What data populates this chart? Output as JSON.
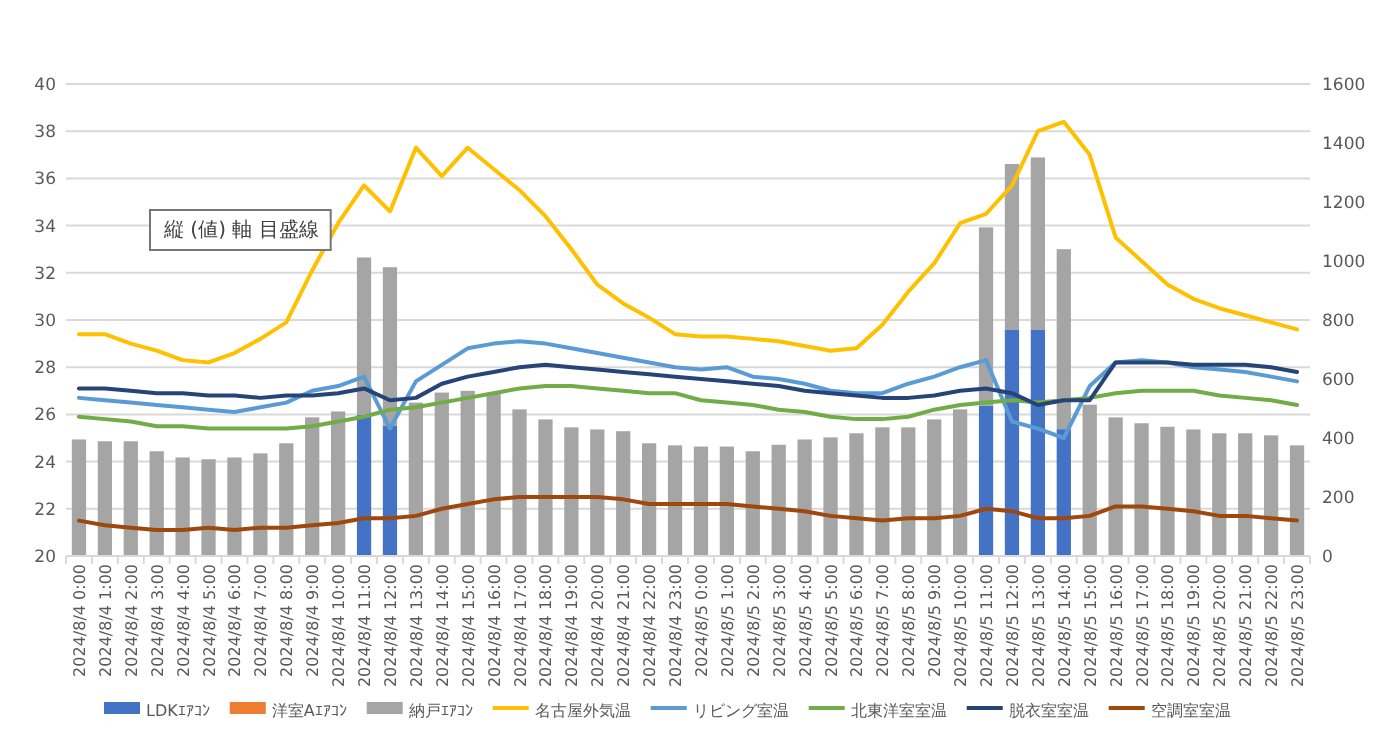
{
  "chart_data": {
    "type": "bar",
    "stacked": true,
    "grid": "y",
    "legend": "bottom",
    "annotations": [
      "縦 (値) 軸 目盛線"
    ],
    "categories": [
      "2024/8/4 0:00",
      "2024/8/4 1:00",
      "2024/8/4 2:00",
      "2024/8/4 3:00",
      "2024/8/4 4:00",
      "2024/8/4 5:00",
      "2024/8/4 6:00",
      "2024/8/4 7:00",
      "2024/8/4 8:00",
      "2024/8/4 9:00",
      "2024/8/4 10:00",
      "2024/8/4 11:00",
      "2024/8/4 12:00",
      "2024/8/4 13:00",
      "2024/8/4 14:00",
      "2024/8/4 15:00",
      "2024/8/4 16:00",
      "2024/8/4 17:00",
      "2024/8/4 18:00",
      "2024/8/4 19:00",
      "2024/8/4 20:00",
      "2024/8/4 21:00",
      "2024/8/4 22:00",
      "2024/8/4 23:00",
      "2024/8/5 0:00",
      "2024/8/5 1:00",
      "2024/8/5 2:00",
      "2024/8/5 3:00",
      "2024/8/5 4:00",
      "2024/8/5 5:00",
      "2024/8/5 6:00",
      "2024/8/5 7:00",
      "2024/8/5 8:00",
      "2024/8/5 9:00",
      "2024/8/5 10:00",
      "2024/8/5 11:00",
      "2024/8/5 12:00",
      "2024/8/5 13:00",
      "2024/8/5 14:00",
      "2024/8/5 15:00",
      "2024/8/5 16:00",
      "2024/8/5 17:00",
      "2024/8/5 18:00",
      "2024/8/5 19:00",
      "2024/8/5 20:00",
      "2024/8/5 21:00",
      "2024/8/5 22:00",
      "2024/8/5 23:00"
    ],
    "ylim": [
      20,
      40
    ],
    "yticks": [
      20,
      22,
      24,
      26,
      28,
      30,
      32,
      34,
      36,
      38,
      40
    ],
    "y2lim": [
      0,
      1600
    ],
    "y2ticks": [
      0,
      200,
      400,
      600,
      800,
      1000,
      1200,
      1400,
      1600
    ],
    "series": [
      {
        "name": "LDKｴｱｺﾝ",
        "type": "bar",
        "axis": "y2",
        "color": "#4472c4",
        "values": [
          0,
          0,
          0,
          0,
          0,
          0,
          0,
          0,
          0,
          0,
          0,
          479,
          441,
          0,
          0,
          0,
          0,
          0,
          0,
          0,
          0,
          0,
          0,
          0,
          0,
          0,
          0,
          0,
          0,
          0,
          0,
          0,
          0,
          0,
          0,
          510,
          768,
          768,
          430,
          0,
          0,
          0,
          0,
          0,
          0,
          0,
          0,
          0
        ]
      },
      {
        "name": "洋室Aｴｱｺﾝ",
        "type": "bar",
        "axis": "y2",
        "color": "#ed7d31",
        "values": [
          0,
          0,
          0,
          0,
          0,
          0,
          0,
          0,
          0,
          0,
          0,
          0,
          0,
          0,
          0,
          0,
          0,
          0,
          0,
          0,
          0,
          0,
          0,
          0,
          0,
          0,
          0,
          0,
          0,
          0,
          0,
          0,
          0,
          0,
          0,
          0,
          0,
          0,
          0,
          0,
          0,
          0,
          0,
          0,
          0,
          0,
          0,
          0
        ]
      },
      {
        "name": "納戸ｴｱｺﾝ",
        "type": "bar",
        "axis": "y2",
        "color": "#a5a5a5",
        "values": [
          395,
          389,
          389,
          355,
          334,
          328,
          334,
          348,
          382,
          470,
          490,
          533,
          538,
          520,
          554,
          560,
          554,
          497,
          463,
          436,
          429,
          423,
          382,
          375,
          371,
          371,
          355,
          377,
          395,
          402,
          416,
          436,
          436,
          463,
          497,
          604,
          561,
          583,
          610,
          513,
          470,
          450,
          438,
          429,
          416,
          416,
          409,
          375
        ]
      },
      {
        "name": "名古屋外気温",
        "type": "line",
        "color": "#ffc000",
        "values": [
          29.4,
          29.4,
          29.0,
          28.7,
          28.3,
          28.2,
          28.6,
          29.2,
          29.9,
          32.1,
          34.1,
          35.7,
          34.6,
          37.3,
          36.1,
          37.3,
          36.4,
          35.5,
          34.4,
          33.0,
          31.5,
          30.7,
          30.1,
          29.4,
          29.3,
          29.3,
          29.2,
          29.1,
          28.9,
          28.7,
          28.8,
          29.8,
          31.2,
          32.4,
          34.1,
          34.5,
          35.7,
          38.0,
          38.4,
          37.0,
          33.5,
          32.5,
          31.5,
          30.9,
          30.5,
          30.2,
          29.9,
          29.6
        ]
      },
      {
        "name": "リビング室温",
        "type": "line",
        "color": "#5b9bd5",
        "values": [
          26.7,
          26.6,
          26.5,
          26.4,
          26.3,
          26.2,
          26.1,
          26.3,
          26.5,
          27.0,
          27.2,
          27.6,
          25.4,
          27.4,
          28.1,
          28.8,
          29.0,
          29.1,
          29.0,
          28.8,
          28.6,
          28.4,
          28.2,
          28.0,
          27.9,
          28.0,
          27.6,
          27.5,
          27.3,
          27.0,
          26.9,
          26.9,
          27.3,
          27.6,
          28.0,
          28.3,
          25.7,
          25.4,
          25.0,
          27.2,
          28.2,
          28.3,
          28.2,
          28.0,
          27.9,
          27.8,
          27.6,
          27.4
        ]
      },
      {
        "name": "北東洋室室温",
        "type": "line",
        "color": "#70ad47",
        "values": [
          25.9,
          25.8,
          25.7,
          25.5,
          25.5,
          25.4,
          25.4,
          25.4,
          25.4,
          25.5,
          25.7,
          25.9,
          26.2,
          26.3,
          26.5,
          26.7,
          26.9,
          27.1,
          27.2,
          27.2,
          27.1,
          27.0,
          26.9,
          26.9,
          26.6,
          26.5,
          26.4,
          26.2,
          26.1,
          25.9,
          25.8,
          25.8,
          25.9,
          26.2,
          26.4,
          26.5,
          26.6,
          26.5,
          26.6,
          26.7,
          26.9,
          27.0,
          27.0,
          27.0,
          26.8,
          26.7,
          26.6,
          26.4
        ]
      },
      {
        "name": "脱衣室室温",
        "type": "line",
        "color": "#264478",
        "values": [
          27.1,
          27.1,
          27.0,
          26.9,
          26.9,
          26.8,
          26.8,
          26.7,
          26.8,
          26.8,
          26.9,
          27.1,
          26.6,
          26.7,
          27.3,
          27.6,
          27.8,
          28.0,
          28.1,
          28.0,
          27.9,
          27.8,
          27.7,
          27.6,
          27.5,
          27.4,
          27.3,
          27.2,
          27.0,
          26.9,
          26.8,
          26.7,
          26.7,
          26.8,
          27.0,
          27.1,
          26.9,
          26.4,
          26.6,
          26.6,
          28.2,
          28.2,
          28.2,
          28.1,
          28.1,
          28.1,
          28.0,
          27.8
        ]
      },
      {
        "name": "空調室室温",
        "type": "line",
        "color": "#9e480e",
        "values": [
          21.5,
          21.3,
          21.2,
          21.1,
          21.1,
          21.2,
          21.1,
          21.2,
          21.2,
          21.3,
          21.4,
          21.6,
          21.6,
          21.7,
          22.0,
          22.2,
          22.4,
          22.5,
          22.5,
          22.5,
          22.5,
          22.4,
          22.2,
          22.2,
          22.2,
          22.2,
          22.1,
          22.0,
          21.9,
          21.7,
          21.6,
          21.5,
          21.6,
          21.6,
          21.7,
          22.0,
          21.9,
          21.6,
          21.6,
          21.7,
          22.1,
          22.1,
          22.0,
          21.9,
          21.7,
          21.7,
          21.6,
          21.5
        ]
      }
    ]
  }
}
